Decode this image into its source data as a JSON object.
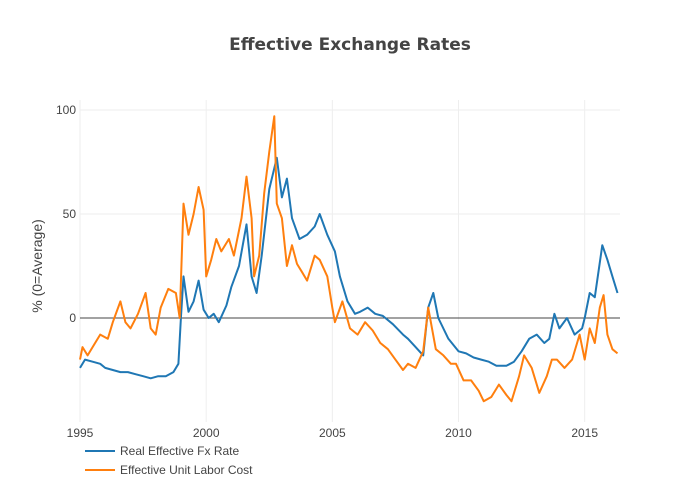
{
  "chart_data": {
    "type": "line",
    "title": "Effective Exchange Rates",
    "xlabel": "",
    "ylabel": "% (0=Average)",
    "xlim": [
      1995,
      2016.4
    ],
    "ylim": [
      -50,
      100
    ],
    "xticks": [
      1995,
      2000,
      2005,
      2010,
      2015
    ],
    "yticks": [
      0,
      50,
      100
    ],
    "grid": true,
    "legend": "bottom-left",
    "series": [
      {
        "name": "Real Effective Fx Rate",
        "color": "#1f77b4",
        "points": [
          [
            1995.0,
            -24
          ],
          [
            1995.2,
            -20
          ],
          [
            1995.5,
            -21
          ],
          [
            1995.8,
            -22
          ],
          [
            1996.0,
            -24
          ],
          [
            1996.3,
            -25
          ],
          [
            1996.6,
            -26
          ],
          [
            1996.9,
            -26
          ],
          [
            1997.2,
            -27
          ],
          [
            1997.5,
            -28
          ],
          [
            1997.8,
            -29
          ],
          [
            1998.1,
            -28
          ],
          [
            1998.4,
            -28
          ],
          [
            1998.7,
            -26
          ],
          [
            1998.9,
            -22
          ],
          [
            1999.0,
            0
          ],
          [
            1999.1,
            20
          ],
          [
            1999.3,
            3
          ],
          [
            1999.5,
            8
          ],
          [
            1999.7,
            18
          ],
          [
            1999.9,
            4
          ],
          [
            2000.1,
            0
          ],
          [
            2000.3,
            2
          ],
          [
            2000.5,
            -2
          ],
          [
            2000.8,
            6
          ],
          [
            2001.0,
            15
          ],
          [
            2001.3,
            25
          ],
          [
            2001.6,
            45
          ],
          [
            2001.8,
            20
          ],
          [
            2002.0,
            12
          ],
          [
            2002.2,
            30
          ],
          [
            2002.5,
            62
          ],
          [
            2002.8,
            77
          ],
          [
            2003.0,
            58
          ],
          [
            2003.2,
            67
          ],
          [
            2003.4,
            48
          ],
          [
            2003.7,
            38
          ],
          [
            2004.0,
            40
          ],
          [
            2004.3,
            44
          ],
          [
            2004.5,
            50
          ],
          [
            2004.8,
            40
          ],
          [
            2005.1,
            32
          ],
          [
            2005.3,
            20
          ],
          [
            2005.6,
            8
          ],
          [
            2005.9,
            2
          ],
          [
            2006.1,
            3
          ],
          [
            2006.4,
            5
          ],
          [
            2006.7,
            2
          ],
          [
            2007.0,
            1
          ],
          [
            2007.4,
            -3
          ],
          [
            2007.8,
            -8
          ],
          [
            2008.0,
            -10
          ],
          [
            2008.3,
            -14
          ],
          [
            2008.6,
            -18
          ],
          [
            2008.8,
            5
          ],
          [
            2009.0,
            12
          ],
          [
            2009.2,
            0
          ],
          [
            2009.6,
            -10
          ],
          [
            2010.0,
            -16
          ],
          [
            2010.3,
            -17
          ],
          [
            2010.6,
            -19
          ],
          [
            2010.9,
            -20
          ],
          [
            2011.2,
            -21
          ],
          [
            2011.5,
            -23
          ],
          [
            2011.9,
            -23
          ],
          [
            2012.2,
            -21
          ],
          [
            2012.5,
            -16
          ],
          [
            2012.8,
            -10
          ],
          [
            2013.1,
            -8
          ],
          [
            2013.4,
            -12
          ],
          [
            2013.6,
            -10
          ],
          [
            2013.8,
            2
          ],
          [
            2014.0,
            -5
          ],
          [
            2014.3,
            0
          ],
          [
            2014.6,
            -8
          ],
          [
            2014.9,
            -5
          ],
          [
            2015.0,
            0
          ],
          [
            2015.2,
            12
          ],
          [
            2015.4,
            10
          ],
          [
            2015.7,
            35
          ],
          [
            2015.9,
            28
          ],
          [
            2016.1,
            20
          ],
          [
            2016.3,
            12
          ]
        ]
      },
      {
        "name": "Effective Unit Labor Cost",
        "color": "#ff7f0e",
        "points": [
          [
            1995.0,
            -20
          ],
          [
            1995.1,
            -14
          ],
          [
            1995.3,
            -18
          ],
          [
            1995.6,
            -12
          ],
          [
            1995.8,
            -8
          ],
          [
            1996.1,
            -10
          ],
          [
            1996.3,
            -2
          ],
          [
            1996.6,
            8
          ],
          [
            1996.8,
            -2
          ],
          [
            1997.0,
            -5
          ],
          [
            1997.3,
            2
          ],
          [
            1997.6,
            12
          ],
          [
            1997.8,
            -5
          ],
          [
            1998.0,
            -8
          ],
          [
            1998.2,
            5
          ],
          [
            1998.5,
            14
          ],
          [
            1998.8,
            12
          ],
          [
            1998.95,
            0
          ],
          [
            1999.1,
            55
          ],
          [
            1999.3,
            40
          ],
          [
            1999.5,
            50
          ],
          [
            1999.7,
            63
          ],
          [
            1999.9,
            52
          ],
          [
            2000.0,
            20
          ],
          [
            2000.2,
            28
          ],
          [
            2000.4,
            38
          ],
          [
            2000.6,
            32
          ],
          [
            2000.9,
            38
          ],
          [
            2001.1,
            30
          ],
          [
            2001.4,
            48
          ],
          [
            2001.6,
            68
          ],
          [
            2001.8,
            48
          ],
          [
            2001.9,
            20
          ],
          [
            2002.1,
            30
          ],
          [
            2002.3,
            60
          ],
          [
            2002.5,
            80
          ],
          [
            2002.7,
            97
          ],
          [
            2002.8,
            55
          ],
          [
            2003.0,
            48
          ],
          [
            2003.2,
            25
          ],
          [
            2003.4,
            35
          ],
          [
            2003.6,
            26
          ],
          [
            2003.8,
            22
          ],
          [
            2004.0,
            18
          ],
          [
            2004.3,
            30
          ],
          [
            2004.5,
            28
          ],
          [
            2004.8,
            20
          ],
          [
            2005.0,
            5
          ],
          [
            2005.1,
            -2
          ],
          [
            2005.4,
            8
          ],
          [
            2005.7,
            -5
          ],
          [
            2006.0,
            -8
          ],
          [
            2006.3,
            -2
          ],
          [
            2006.6,
            -6
          ],
          [
            2006.9,
            -12
          ],
          [
            2007.2,
            -15
          ],
          [
            2007.5,
            -20
          ],
          [
            2007.8,
            -25
          ],
          [
            2008.0,
            -22
          ],
          [
            2008.3,
            -24
          ],
          [
            2008.6,
            -16
          ],
          [
            2008.8,
            5
          ],
          [
            2008.95,
            -5
          ],
          [
            2009.1,
            -15
          ],
          [
            2009.4,
            -18
          ],
          [
            2009.7,
            -22
          ],
          [
            2009.9,
            -22
          ],
          [
            2010.2,
            -30
          ],
          [
            2010.5,
            -30
          ],
          [
            2010.8,
            -35
          ],
          [
            2011.0,
            -40
          ],
          [
            2011.3,
            -38
          ],
          [
            2011.6,
            -32
          ],
          [
            2011.9,
            -37
          ],
          [
            2012.1,
            -40
          ],
          [
            2012.4,
            -28
          ],
          [
            2012.6,
            -18
          ],
          [
            2012.9,
            -24
          ],
          [
            2013.2,
            -36
          ],
          [
            2013.5,
            -28
          ],
          [
            2013.7,
            -20
          ],
          [
            2013.9,
            -20
          ],
          [
            2014.2,
            -24
          ],
          [
            2014.5,
            -20
          ],
          [
            2014.8,
            -8
          ],
          [
            2015.0,
            -20
          ],
          [
            2015.2,
            -5
          ],
          [
            2015.4,
            -12
          ],
          [
            2015.6,
            5
          ],
          [
            2015.75,
            11
          ],
          [
            2015.9,
            -8
          ],
          [
            2016.1,
            -15
          ],
          [
            2016.3,
            -17
          ]
        ]
      }
    ]
  }
}
